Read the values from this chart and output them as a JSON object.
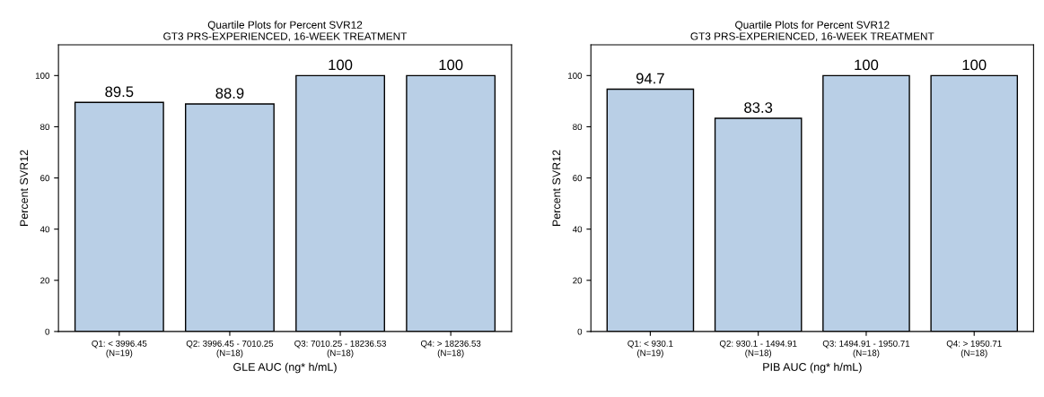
{
  "chart_data": [
    {
      "type": "bar",
      "title": "Quartile Plots for Percent SVR12\nGT3 PRS-EXPERIENCED, 16-WEEK TREATMENT",
      "xlabel": "GLE AUC (ng* h/mL)",
      "ylabel": "Percent SVR12",
      "categories": [
        "Q1: < 3996.45\n(N=19)",
        "Q2: 3996.45 - 7010.25\n(N=18)",
        "Q3: 7010.25 - 18236.53\n(N=18)",
        "Q4: > 18236.53\n(N=18)"
      ],
      "values": [
        89.5,
        88.9,
        100,
        100
      ],
      "color": "#b9cfe6",
      "ylim": [
        0,
        112
      ],
      "yticks": [
        0,
        20,
        40,
        60,
        80,
        100
      ],
      "data_labels": true,
      "grid": false,
      "legend": false
    },
    {
      "type": "bar",
      "title": "Quartile Plots for Percent SVR12\nGT3 PRS-EXPERIENCED, 16-WEEK TREATMENT",
      "xlabel": "PIB AUC (ng* h/mL)",
      "ylabel": "Percent SVR12",
      "categories": [
        "Q1: < 930.1\n(N=19)",
        "Q2: 930.1 - 1494.91\n(N=18)",
        "Q3: 1494.91 - 1950.71\n(N=18)",
        "Q4: > 1950.71\n(N=18)"
      ],
      "values": [
        94.7,
        83.3,
        100,
        100
      ],
      "color": "#b9cfe6",
      "ylim": [
        0,
        112
      ],
      "yticks": [
        0,
        20,
        40,
        60,
        80,
        100
      ],
      "data_labels": true,
      "grid": false,
      "legend": false
    }
  ]
}
